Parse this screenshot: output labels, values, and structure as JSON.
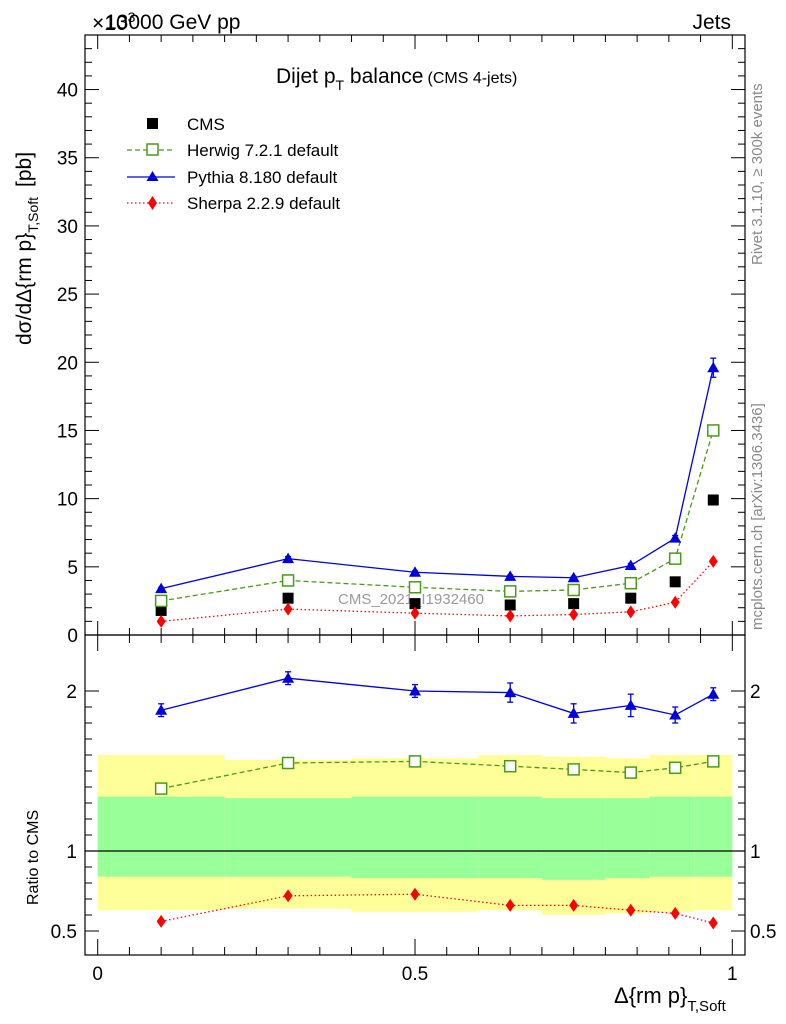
{
  "header": {
    "left": "13000 GeV pp",
    "right": "Jets",
    "exponent": "×10",
    "exponent_power": "3"
  },
  "side_labels": {
    "rivet": "Rivet 3.1.10, ≥ 300k events",
    "mcplots": "mcplots.cern.ch [arXiv:1306.3436]"
  },
  "watermark": "CMS_2021_I1932460",
  "chart_data": [
    {
      "type": "line",
      "panel": "main",
      "title": "Dijet p",
      "title_sub": "T",
      "title_rest": " balance",
      "title_note": "(CMS 4-jets)",
      "ylabel": "dσ/dΔ{rm p}",
      "ylabel_sub": "T,Soft",
      "ylabel_unit": "[pb]",
      "xlabel": "Δ{rm p}",
      "xlabel_sub": "T,Soft",
      "xlim": [
        -0.02,
        1.02
      ],
      "ylim": [
        0,
        44
      ],
      "yticks": [
        0,
        5,
        10,
        15,
        20,
        25,
        30,
        35,
        40
      ],
      "xticks": [
        0,
        0.5,
        1
      ],
      "xtick_labels": [
        "0",
        "0.5",
        "1"
      ],
      "x": [
        0.1,
        0.3,
        0.5,
        0.65,
        0.75,
        0.84,
        0.91,
        0.97
      ],
      "series": [
        {
          "name": "CMS",
          "color": "#000000",
          "marker": "square-filled",
          "line": "none",
          "values": [
            1.8,
            2.7,
            2.3,
            2.2,
            2.3,
            2.7,
            3.9,
            9.9
          ]
        },
        {
          "name": "Herwig 7.2.1 default",
          "color": "#4a9a19",
          "marker": "square-open",
          "line": "dashed",
          "values": [
            2.5,
            4.0,
            3.5,
            3.2,
            3.3,
            3.8,
            5.6,
            15.0
          ]
        },
        {
          "name": "Pythia 8.180 default",
          "color": "#0000dd",
          "marker": "triangle",
          "line": "solid",
          "values": [
            3.4,
            5.6,
            4.6,
            4.3,
            4.2,
            5.1,
            7.1,
            19.6
          ],
          "errors": [
            0.1,
            0.15,
            0.1,
            0.1,
            0.1,
            0.15,
            0.2,
            0.7
          ]
        },
        {
          "name": "Sherpa 2.2.9 default",
          "color": "#ff0000",
          "marker": "diamond",
          "line": "dotted",
          "values": [
            1.0,
            1.9,
            1.6,
            1.4,
            1.5,
            1.7,
            2.4,
            5.4
          ]
        }
      ]
    },
    {
      "type": "line",
      "panel": "ratio",
      "ylabel": "Ratio to CMS",
      "ylim": [
        0.35,
        2.35
      ],
      "yticks": [
        0.5,
        1,
        2
      ],
      "ytick_labels": [
        "0.5",
        "1",
        "2"
      ],
      "reference": 1,
      "bands": {
        "edges": [
          0,
          0.2,
          0.4,
          0.6,
          0.7,
          0.8,
          0.87,
          0.94,
          1.0
        ],
        "stat_low": [
          0.84,
          0.84,
          0.83,
          0.83,
          0.82,
          0.83,
          0.84,
          0.84
        ],
        "stat_high": [
          1.34,
          1.33,
          1.34,
          1.34,
          1.33,
          1.33,
          1.34,
          1.34
        ],
        "total_low": [
          0.63,
          0.64,
          0.62,
          0.63,
          0.6,
          0.61,
          0.62,
          0.63
        ],
        "total_high": [
          1.6,
          1.57,
          1.58,
          1.6,
          1.59,
          1.58,
          1.6,
          1.6
        ],
        "stat_color": "#99ff99",
        "total_color": "#ffff99"
      },
      "x": [
        0.1,
        0.3,
        0.5,
        0.65,
        0.75,
        0.84,
        0.91,
        0.97
      ],
      "series": [
        {
          "name": "Herwig 7.2.1 default",
          "color": "#4a9a19",
          "marker": "square-open",
          "line": "dashed",
          "values": [
            1.39,
            1.55,
            1.56,
            1.53,
            1.51,
            1.49,
            1.52,
            1.56
          ]
        },
        {
          "name": "Pythia 8.180 default",
          "color": "#0000dd",
          "marker": "triangle",
          "line": "solid",
          "values": [
            1.88,
            2.08,
            2.0,
            1.99,
            1.86,
            1.91,
            1.85,
            1.98
          ],
          "errors": [
            0.04,
            0.04,
            0.04,
            0.06,
            0.06,
            0.07,
            0.05,
            0.04
          ]
        },
        {
          "name": "Sherpa 2.2.9 default",
          "color": "#ff0000",
          "marker": "diamond",
          "line": "dotted",
          "values": [
            0.56,
            0.72,
            0.73,
            0.66,
            0.66,
            0.63,
            0.61,
            0.55
          ]
        }
      ]
    }
  ]
}
